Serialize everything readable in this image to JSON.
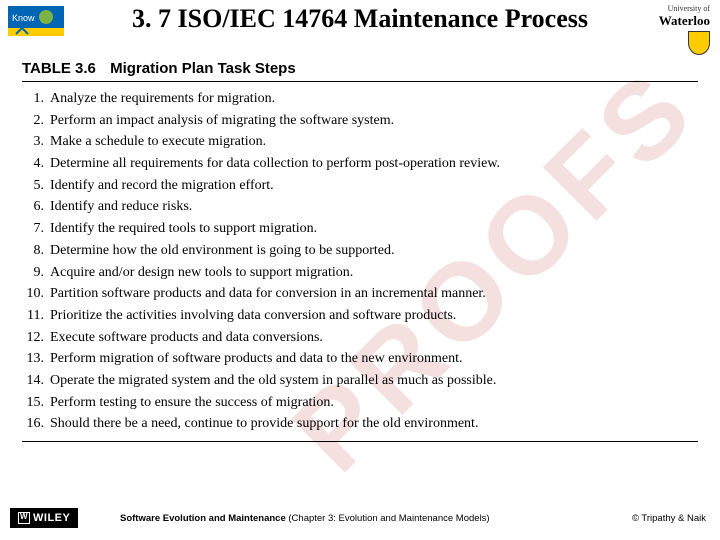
{
  "watermark": "PROOFS",
  "header": {
    "title": "3. 7 ISO/IEC 14764 Maintenance Process",
    "university_small": "University of",
    "university_name": "Waterloo"
  },
  "table": {
    "label": "TABLE 3.6",
    "caption": "Migration Plan Task Steps",
    "steps": [
      "Analyze the requirements for migration.",
      "Perform an impact analysis of migrating the software system.",
      "Make a schedule to execute migration.",
      "Determine all requirements for data collection to perform post-operation review.",
      "Identify and record the migration effort.",
      "Identify and reduce risks.",
      "Identify the required tools to support migration.",
      "Determine how the old environment is going to be supported.",
      "Acquire and/or design new tools to support migration.",
      "Partition software products and data for conversion in an incremental manner.",
      "Prioritize the activities involving data conversion and software products.",
      "Execute software products and data conversions.",
      "Perform migration of software products and data to the new environment.",
      "Operate the migrated system and the old system in parallel as much as possible.",
      "Perform testing to ensure the success of migration.",
      "Should there be a need, continue to provide support for the old environment."
    ]
  },
  "footer": {
    "publisher": "WILEY",
    "book_bold": "Software Evolution and Maintenance",
    "book_rest": " (Chapter 3: Evolution and Maintenance Models)",
    "copyright": "© Tripathy & Naik"
  },
  "colors": {
    "watermark": "#f5e0e0",
    "text": "#000000",
    "background": "#ffffff",
    "rule": "#000000"
  }
}
